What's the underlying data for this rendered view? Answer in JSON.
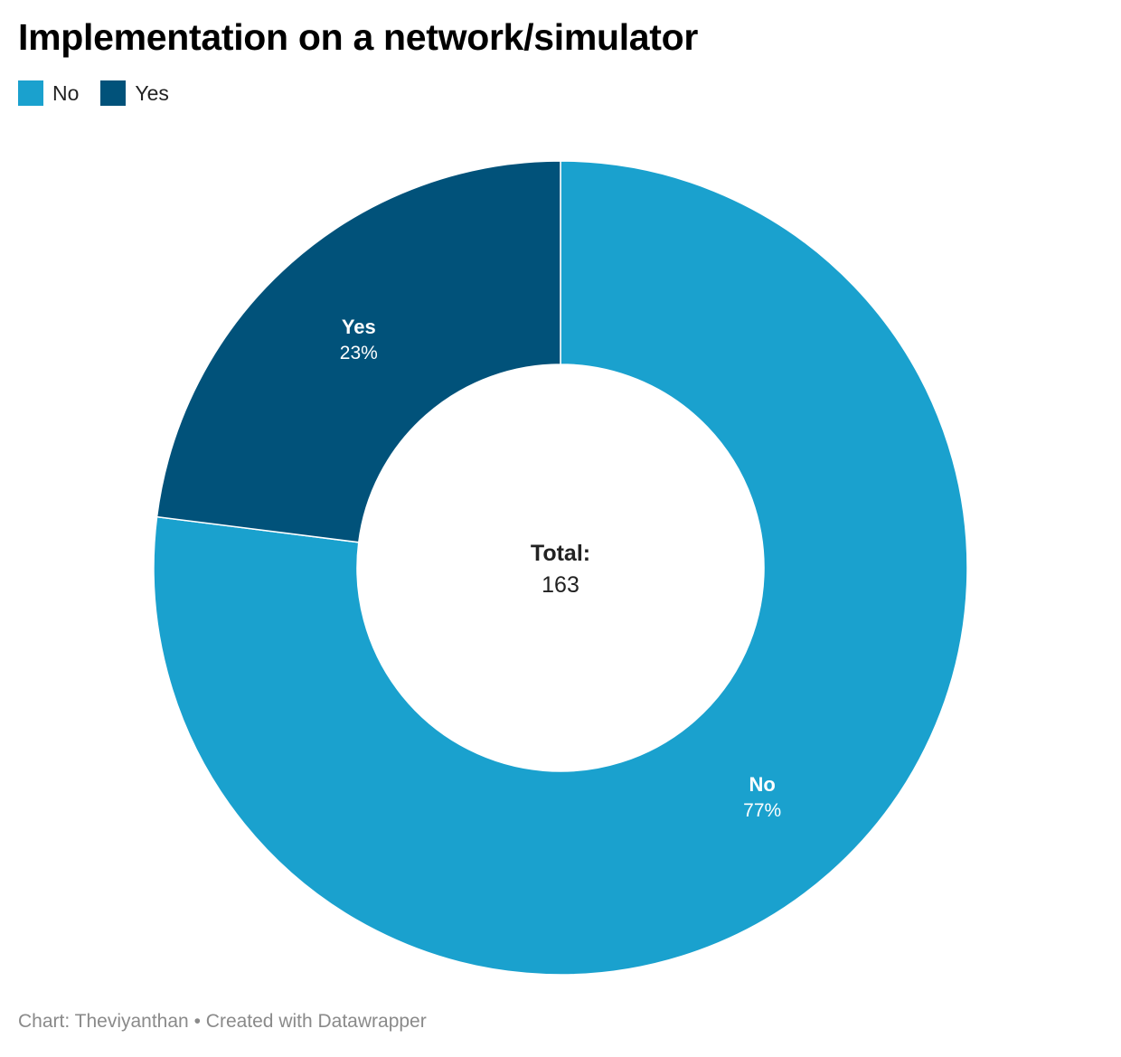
{
  "header": {
    "title": "Implementation on a network/simulator"
  },
  "footer": {
    "source": "Chart: Theviyanthan",
    "separator": "•",
    "credit": "Created with Datawrapper"
  },
  "chart_data": {
    "type": "pie",
    "variant": "donut",
    "title": "Implementation on a network/simulator",
    "series": [
      {
        "name": "No",
        "value": 77,
        "label": "77%",
        "color": "#1aa1ce"
      },
      {
        "name": "Yes",
        "value": 23,
        "label": "23%",
        "color": "#01527a"
      }
    ],
    "center_label": "Total:",
    "center_value": "163",
    "legend": "top-left",
    "slice_order": "clockwise from top"
  }
}
